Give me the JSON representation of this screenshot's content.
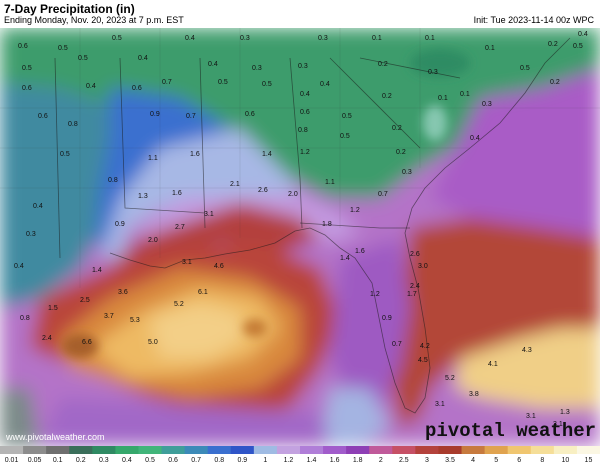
{
  "header": {
    "title": "7-Day Precipitation (in)",
    "subtitle": "Ending Monday, Nov. 20, 2023 at 7 p.m. EST",
    "init": "Init: Tue 2023-11-14 00z WPC"
  },
  "watermark": {
    "brand": "pivotal weather",
    "url": "www.pivotalweather.com"
  },
  "colorbar": {
    "ticks": [
      "0.01",
      "0.05",
      "0.1",
      "0.2",
      "0.3",
      "0.4",
      "0.5",
      "0.6",
      "0.7",
      "0.8",
      "0.9",
      "1",
      "1.2",
      "1.4",
      "1.6",
      "1.8",
      "2",
      "2.5",
      "3",
      "3.5",
      "4",
      "5",
      "6",
      "8",
      "10",
      "15"
    ],
    "colors": [
      "#b4b4b4",
      "#8c8c8c",
      "#6e6e6e",
      "#3a6e5a",
      "#2f8a63",
      "#36a86c",
      "#41b57a",
      "#3f9e9a",
      "#3c8ab8",
      "#3a6fcf",
      "#2f55c8",
      "#9fbbe3",
      "#c3a2e0",
      "#b07ed8",
      "#a15ccb",
      "#8e3fb5",
      "#c05a9a",
      "#c65065",
      "#b4423c",
      "#a83b2c",
      "#c77a3e",
      "#e0a34f",
      "#f0c670",
      "#f5de98",
      "#f8efc2",
      "#fbf7e3"
    ]
  },
  "map": {
    "labels": [
      {
        "t": "0.6"
      },
      {
        "t": "0.5"
      },
      {
        "t": "0.5"
      },
      {
        "t": "0.4"
      },
      {
        "t": "0.3"
      },
      {
        "t": "0.3"
      },
      {
        "t": "0.1"
      },
      {
        "t": "0.1"
      },
      {
        "t": "0.1"
      },
      {
        "t": "0.2"
      },
      {
        "t": "0.5"
      },
      {
        "t": "0.5"
      },
      {
        "t": "0.4"
      },
      {
        "t": "0.4"
      },
      {
        "t": "0.3"
      },
      {
        "t": "0.3"
      },
      {
        "t": "0.2"
      },
      {
        "t": "0.3"
      },
      {
        "t": "0.5"
      },
      {
        "t": "0.2"
      },
      {
        "t": "0.6"
      },
      {
        "t": "0.4"
      },
      {
        "t": "0.6"
      },
      {
        "t": "0.7"
      },
      {
        "t": "0.5"
      },
      {
        "t": "0.5"
      },
      {
        "t": "0.4"
      },
      {
        "t": "0.4"
      },
      {
        "t": "0.2"
      },
      {
        "t": "0.1"
      },
      {
        "t": "0.6"
      },
      {
        "t": "0.8"
      },
      {
        "t": "0.9"
      },
      {
        "t": "0.7"
      },
      {
        "t": "0.6"
      },
      {
        "t": "0.6"
      },
      {
        "t": "0.5"
      },
      {
        "t": "0.2"
      },
      {
        "t": "0.1"
      },
      {
        "t": "0.3"
      },
      {
        "t": "0.5"
      },
      {
        "t": "1.1"
      },
      {
        "t": "1.6"
      },
      {
        "t": "1.4"
      },
      {
        "t": "1.2"
      },
      {
        "t": "0.8"
      },
      {
        "t": "0.5"
      },
      {
        "t": "0.2"
      },
      {
        "t": "0.3"
      },
      {
        "t": "0.4"
      },
      {
        "t": "0.4"
      },
      {
        "t": "0.8"
      },
      {
        "t": "1.3"
      },
      {
        "t": "1.6"
      },
      {
        "t": "2.1"
      },
      {
        "t": "2.6"
      },
      {
        "t": "2.0"
      },
      {
        "t": "1.1"
      },
      {
        "t": "0.7"
      },
      {
        "t": "1.2"
      },
      {
        "t": "0.3"
      },
      {
        "t": "0.9"
      },
      {
        "t": "2.0"
      },
      {
        "t": "2.7"
      },
      {
        "t": "3.1"
      },
      {
        "t": "1.8"
      },
      {
        "t": "1.4"
      },
      {
        "t": "1.6"
      },
      {
        "t": "2.6"
      },
      {
        "t": "3.0"
      },
      {
        "t": "0.4"
      },
      {
        "t": "1.4"
      },
      {
        "t": "3.1"
      },
      {
        "t": "4.6"
      },
      {
        "t": "2.4"
      },
      {
        "t": "1.7"
      },
      {
        "t": "1.2"
      },
      {
        "t": "2.5"
      },
      {
        "t": "3.6"
      },
      {
        "t": "6.1"
      },
      {
        "t": "5.2"
      },
      {
        "t": "1.5"
      },
      {
        "t": "3.7"
      },
      {
        "t": "5.3"
      },
      {
        "t": "0.8"
      },
      {
        "t": "2.4"
      },
      {
        "t": "6.6"
      },
      {
        "t": "5.0"
      },
      {
        "t": "0.9"
      },
      {
        "t": "0.7"
      },
      {
        "t": "4.2"
      },
      {
        "t": "4.5"
      },
      {
        "t": "4.1"
      },
      {
        "t": "4.3"
      },
      {
        "t": "5.2"
      },
      {
        "t": "3.8"
      },
      {
        "t": "3.1"
      },
      {
        "t": "3.1"
      },
      {
        "t": "3.1"
      },
      {
        "t": "1.3"
      },
      {
        "t": "0.5"
      },
      {
        "t": "0.4"
      }
    ]
  }
}
